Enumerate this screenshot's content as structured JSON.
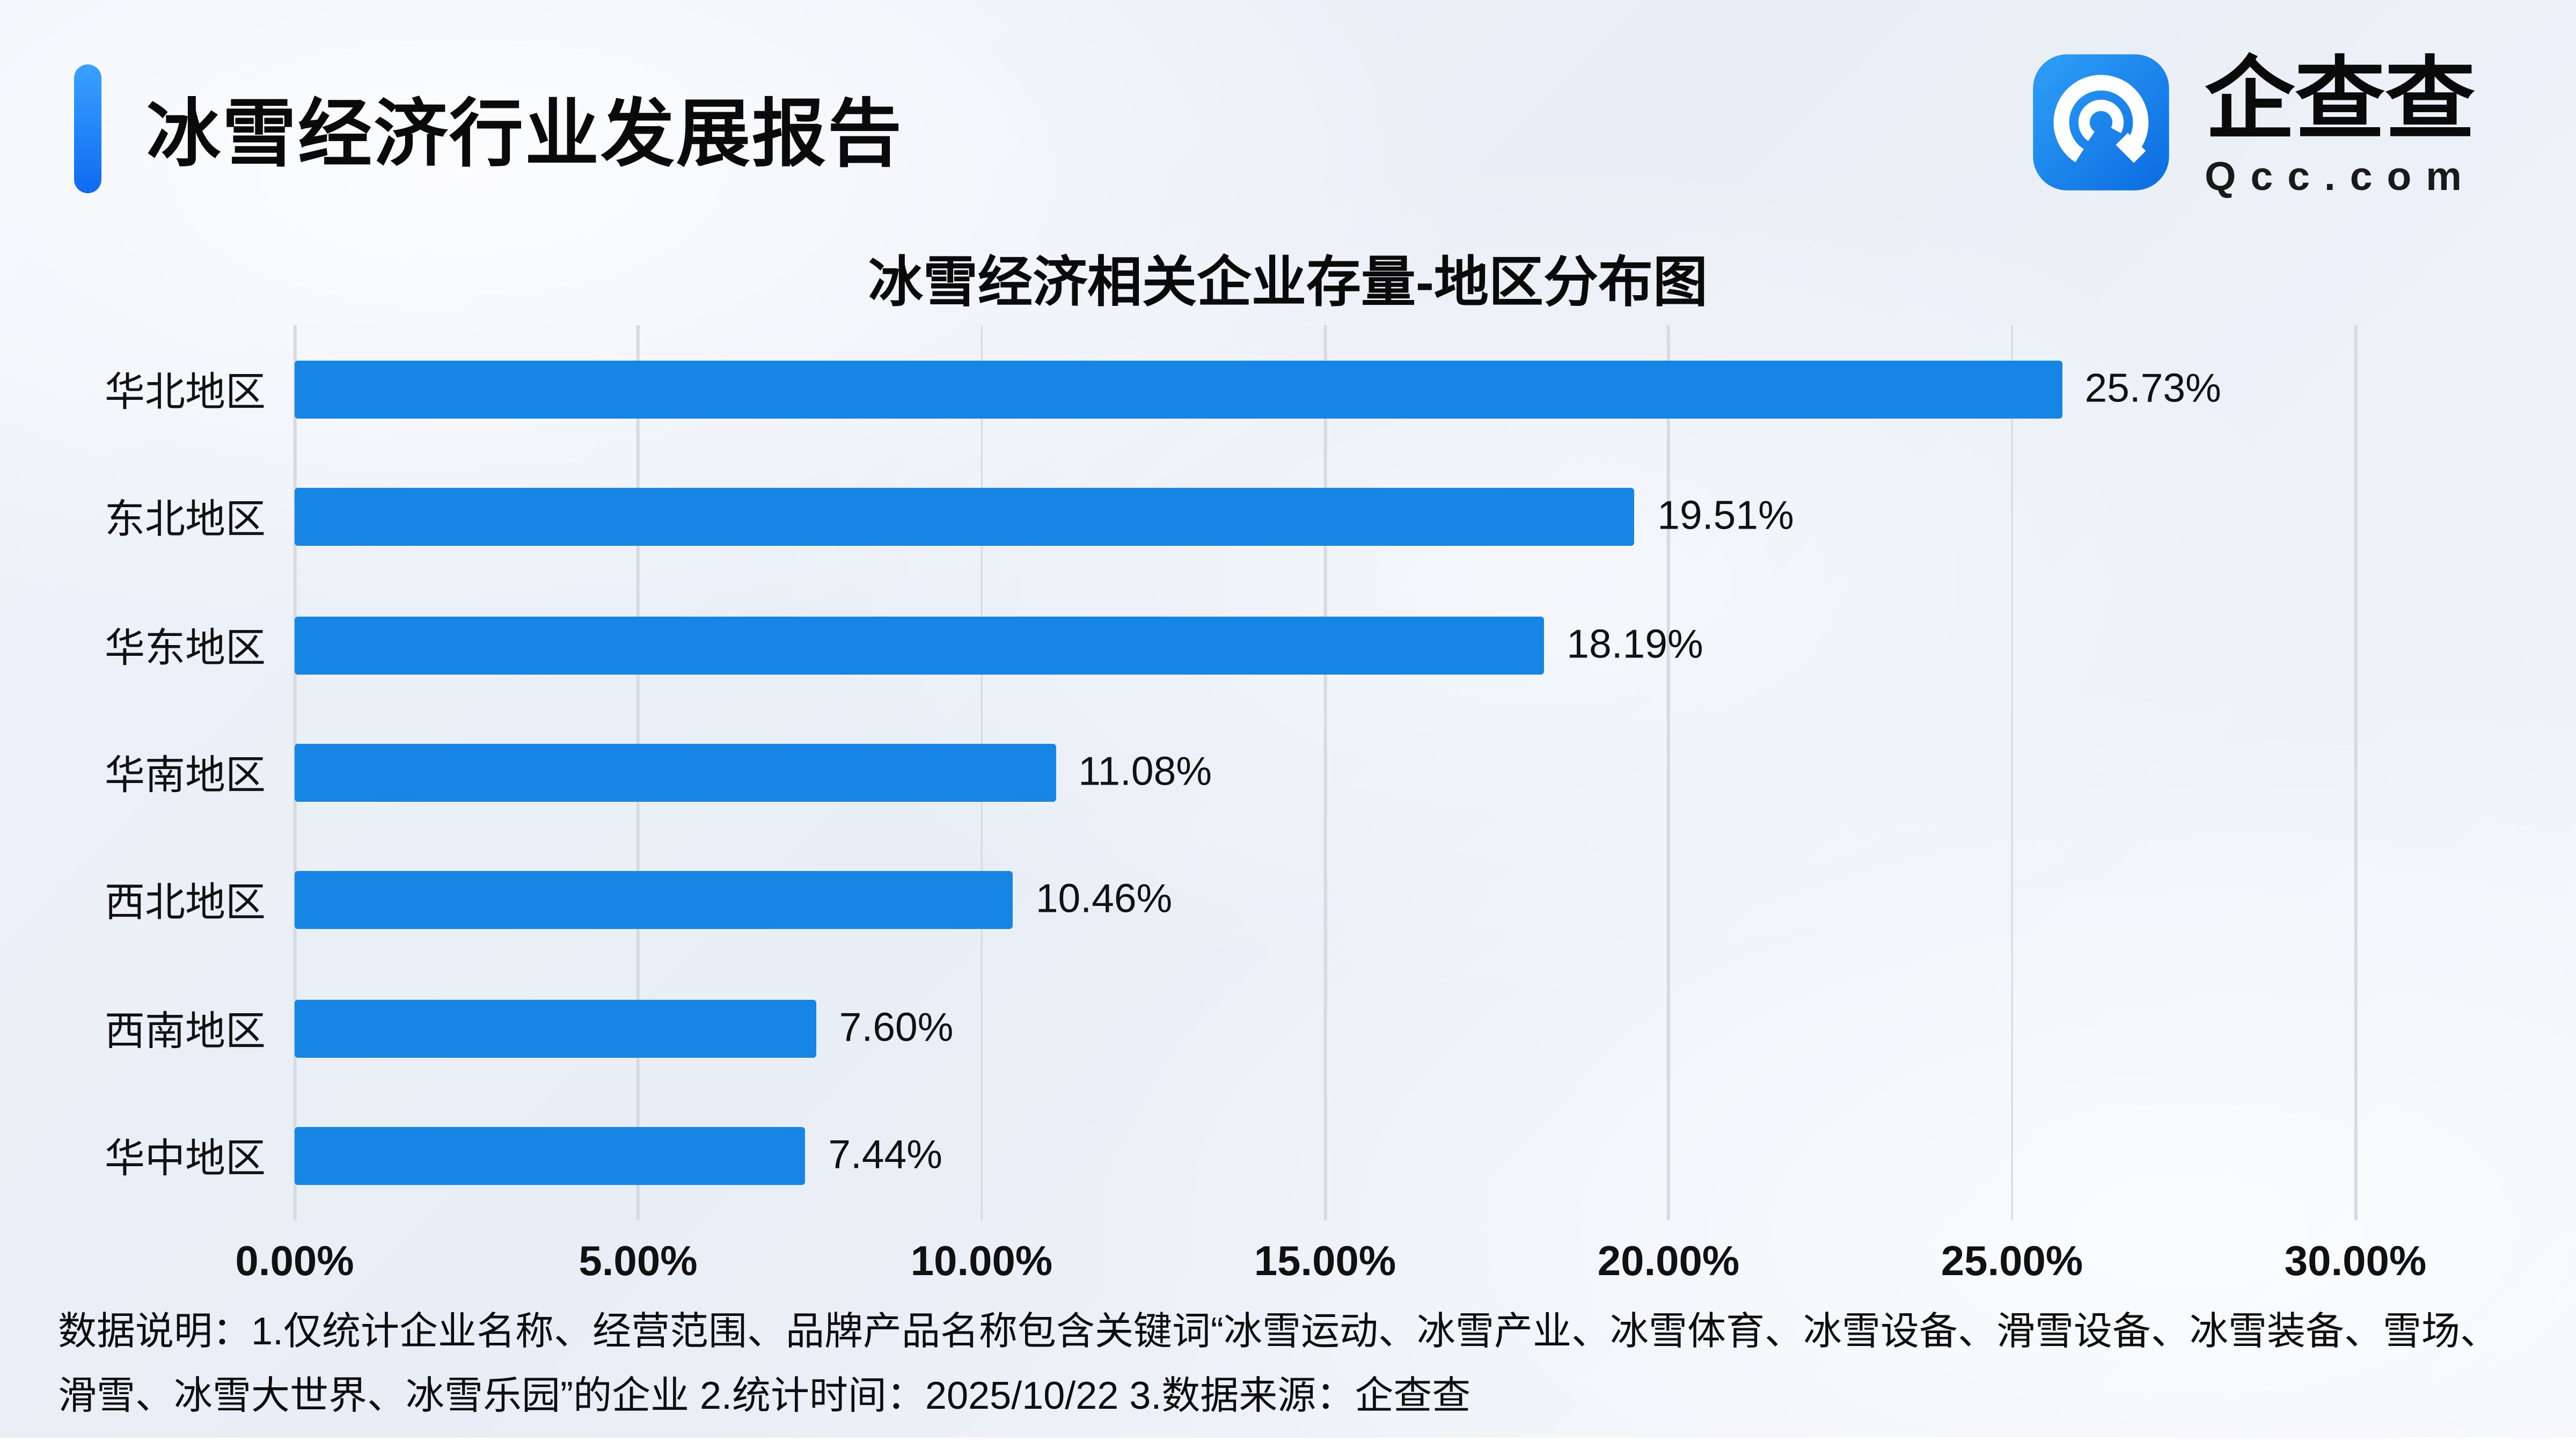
{
  "header": {
    "title": "冰雪经济行业发展报告",
    "accent_color": "#1677ff"
  },
  "logo": {
    "brand_name": "企查查",
    "brand_domain": "Qcc.com",
    "icon_name": "qcc-logo-icon",
    "icon_color": "#1486f0"
  },
  "chart_data": {
    "type": "bar",
    "orientation": "horizontal",
    "title": "冰雪经济相关企业存量-地区分布图",
    "categories": [
      "华北地区",
      "东北地区",
      "华东地区",
      "华南地区",
      "西北地区",
      "西南地区",
      "华中地区"
    ],
    "values": [
      25.73,
      19.51,
      18.19,
      11.08,
      10.46,
      7.6,
      7.44
    ],
    "value_labels": [
      "25.73%",
      "19.51%",
      "18.19%",
      "11.08%",
      "10.46%",
      "7.60%",
      "7.44%"
    ],
    "x_ticks": [
      "0.00%",
      "5.00%",
      "10.00%",
      "15.00%",
      "20.00%",
      "25.00%",
      "30.00%"
    ],
    "xlim": [
      0,
      30
    ],
    "xlabel": "",
    "ylabel": "",
    "bar_color": "#1785e4",
    "grid": true,
    "legend": "none"
  },
  "footer": {
    "note": "数据说明：1.仅统计企业名称、经营范围、品牌产品名称包含关键词“冰雪运动、冰雪产业、冰雪体育、冰雪设备、滑雪设备、冰雪装备、雪场、滑雪、冰雪大世界、冰雪乐园”的企业  2.统计时间：2025/10/22    3.数据来源：企查查"
  }
}
